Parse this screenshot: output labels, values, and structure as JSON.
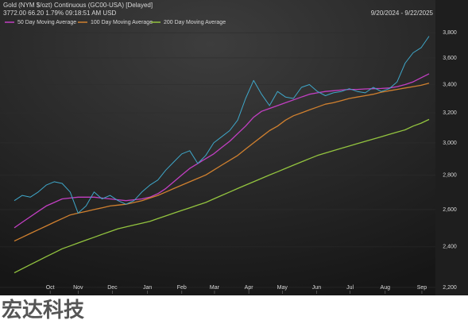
{
  "chart_data": {
    "type": "line",
    "title": "Gold (NYM $/ozt) Continuous (GC00-USA) [Delayed]",
    "quote": "3772.00   66.20   1.79%   09:18:51 AM   USD",
    "date_range": "9/20/2024 - 9/22/2025",
    "watermark": "宏达科技",
    "log_scale": true,
    "grid": true,
    "xlim": [
      0,
      52
    ],
    "xticks": [
      {
        "value": 4.5,
        "label": "Oct"
      },
      {
        "value": 8,
        "label": "Nov"
      },
      {
        "value": 12.3,
        "label": "Dec"
      },
      {
        "value": 16.7,
        "label": "Jan"
      },
      {
        "value": 21,
        "label": "Feb"
      },
      {
        "value": 25.1,
        "label": "Mar"
      },
      {
        "value": 29.4,
        "label": "Apr"
      },
      {
        "value": 33.6,
        "label": "May"
      },
      {
        "value": 37.9,
        "label": "Jun"
      },
      {
        "value": 42.1,
        "label": "Jul"
      },
      {
        "value": 46.5,
        "label": "Aug"
      },
      {
        "value": 51.1,
        "label": "Sep"
      }
    ],
    "ylim": [
      2170,
      3940
    ],
    "yticks": [
      {
        "value": 2200,
        "label": "2,200"
      },
      {
        "value": 2400,
        "label": "2,400"
      },
      {
        "value": 2600,
        "label": "2,600"
      },
      {
        "value": 2800,
        "label": "2,800"
      },
      {
        "value": 3000,
        "label": "3,000"
      },
      {
        "value": 3200,
        "label": "3,200"
      },
      {
        "value": 3400,
        "label": "3,400"
      },
      {
        "value": 3600,
        "label": "3,600"
      },
      {
        "value": 3800,
        "label": "3,800"
      }
    ],
    "x": [
      0,
      1,
      2,
      3,
      4,
      5,
      6,
      7,
      8,
      9,
      10,
      11,
      12,
      13,
      14,
      15,
      16,
      17,
      18,
      19,
      20,
      21,
      22,
      23,
      24,
      25,
      26,
      27,
      28,
      29,
      30,
      31,
      32,
      33,
      34,
      35,
      36,
      37,
      38,
      39,
      40,
      41,
      42,
      43,
      44,
      45,
      46,
      47,
      48,
      49,
      50,
      51,
      52
    ],
    "price": {
      "color": "#3fa7c9",
      "values": [
        2650,
        2680,
        2670,
        2700,
        2740,
        2760,
        2750,
        2700,
        2580,
        2620,
        2700,
        2660,
        2680,
        2650,
        2630,
        2650,
        2700,
        2740,
        2770,
        2830,
        2880,
        2930,
        2950,
        2870,
        2920,
        3000,
        3040,
        3080,
        3150,
        3300,
        3430,
        3330,
        3250,
        3350,
        3310,
        3300,
        3380,
        3400,
        3350,
        3320,
        3340,
        3350,
        3370,
        3350,
        3340,
        3380,
        3350,
        3370,
        3420,
        3560,
        3640,
        3680,
        3772
      ]
    },
    "series": [
      {
        "name": "50 Day Moving Average",
        "color": "#c23fc2",
        "values": [
          2500,
          2530,
          2560,
          2590,
          2620,
          2640,
          2660,
          2665,
          2670,
          2670,
          2670,
          2665,
          2660,
          2655,
          2650,
          2655,
          2660,
          2670,
          2690,
          2720,
          2760,
          2800,
          2840,
          2870,
          2900,
          2930,
          2970,
          3010,
          3060,
          3110,
          3170,
          3210,
          3230,
          3250,
          3270,
          3290,
          3310,
          3330,
          3340,
          3350,
          3355,
          3360,
          3365,
          3365,
          3368,
          3370,
          3372,
          3375,
          3385,
          3400,
          3420,
          3450,
          3480
        ]
      },
      {
        "name": "100 Day Moving Average",
        "color": "#d0802f",
        "values": [
          2430,
          2450,
          2470,
          2490,
          2510,
          2530,
          2550,
          2570,
          2580,
          2590,
          2600,
          2610,
          2620,
          2625,
          2630,
          2640,
          2650,
          2665,
          2680,
          2700,
          2720,
          2740,
          2760,
          2780,
          2800,
          2830,
          2860,
          2890,
          2920,
          2960,
          3000,
          3040,
          3080,
          3110,
          3150,
          3180,
          3200,
          3220,
          3240,
          3260,
          3270,
          3285,
          3300,
          3310,
          3320,
          3330,
          3345,
          3355,
          3365,
          3375,
          3385,
          3395,
          3410
        ]
      },
      {
        "name": "200 Day Moving Average",
        "color": "#93c43f",
        "values": [
          2270,
          2290,
          2310,
          2330,
          2350,
          2370,
          2390,
          2405,
          2420,
          2435,
          2450,
          2465,
          2480,
          2495,
          2505,
          2515,
          2525,
          2535,
          2550,
          2565,
          2580,
          2595,
          2610,
          2625,
          2640,
          2660,
          2680,
          2700,
          2720,
          2740,
          2760,
          2780,
          2800,
          2820,
          2840,
          2860,
          2880,
          2900,
          2920,
          2935,
          2950,
          2965,
          2980,
          2995,
          3010,
          3025,
          3040,
          3055,
          3070,
          3085,
          3110,
          3130,
          3155
        ]
      }
    ]
  }
}
